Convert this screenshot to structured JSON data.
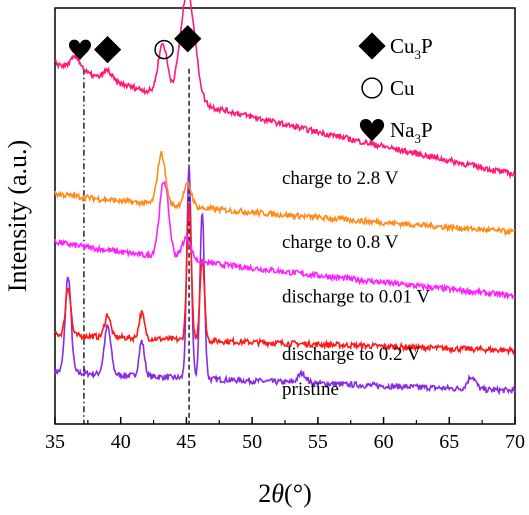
{
  "chart_data": {
    "type": "line",
    "xlabel": "2θ(°)",
    "xlabel_parts": {
      "prefix": "2",
      "var": "θ",
      "suffix": "(°)"
    },
    "ylabel": "Intensity (a.u.)",
    "xlim": [
      35,
      70
    ],
    "xticks": [
      "35",
      "40",
      "45",
      "50",
      "55",
      "60",
      "65",
      "70"
    ],
    "y_ticks_shown": false,
    "grid": false,
    "legend_position": "top-right",
    "legend": [
      {
        "symbol": "filled-diamond",
        "label": "Cu3P",
        "base": "Cu",
        "sub": "3",
        "tail": "P"
      },
      {
        "symbol": "open-circle",
        "label": "Cu",
        "base": "Cu",
        "sub": "",
        "tail": ""
      },
      {
        "symbol": "filled-heart",
        "label": "Na3P",
        "base": "Na",
        "sub": "3",
        "tail": "P"
      }
    ],
    "reference_lines": [
      {
        "x": 37.2,
        "style": "dash-dot"
      },
      {
        "x": 45.2,
        "style": "dashed"
      }
    ],
    "peak_markers": [
      {
        "x": 36.9,
        "symbol": "filled-heart"
      },
      {
        "x": 39.0,
        "symbol": "filled-diamond"
      },
      {
        "x": 43.3,
        "symbol": "open-circle"
      },
      {
        "x": 45.1,
        "symbol": "filled-diamond"
      }
    ],
    "series": [
      {
        "label": "pristine",
        "color": "#8a2be2",
        "baseline_start": 0.82,
        "baseline_end": 0.52,
        "peaks": [
          [
            36.0,
            1.5,
            0.22
          ],
          [
            39.0,
            0.75,
            0.25
          ],
          [
            41.6,
            0.55,
            0.2
          ],
          [
            45.2,
            3.3,
            0.17
          ],
          [
            46.2,
            2.6,
            0.17
          ],
          [
            53.8,
            0.15,
            0.3
          ],
          [
            66.7,
            0.2,
            0.3
          ]
        ]
      },
      {
        "label": "discharge to 0.2 V",
        "color": "#ff1a1a",
        "baseline_start": 1.4,
        "baseline_end": 1.15,
        "peaks": [
          [
            36.0,
            0.75,
            0.2
          ],
          [
            39.0,
            0.35,
            0.22
          ],
          [
            41.6,
            0.4,
            0.2
          ],
          [
            45.2,
            2.1,
            0.17
          ],
          [
            46.2,
            1.3,
            0.17
          ]
        ]
      },
      {
        "label": "discharge to 0.01 V",
        "color": "#ff22ff",
        "baseline_start": 2.85,
        "baseline_end": 2.0,
        "peaks": [
          [
            43.3,
            1.2,
            0.35
          ],
          [
            45.0,
            0.35,
            0.35
          ]
        ]
      },
      {
        "label": "charge to 0.8 V",
        "color": "#ff8c1a",
        "baseline_start": 3.6,
        "baseline_end": 3.0,
        "peaks": [
          [
            43.1,
            0.8,
            0.3
          ],
          [
            45.1,
            0.35,
            0.3
          ]
        ]
      },
      {
        "label": "charge to 2.8 V",
        "color": "#ff1a75",
        "baseline_start": 5.65,
        "baseline_end": 3.9,
        "peaks": [
          [
            36.6,
            0.2,
            0.4
          ],
          [
            39.0,
            0.15,
            0.3
          ],
          [
            43.2,
            0.8,
            0.35
          ],
          [
            45.1,
            1.7,
            0.55
          ]
        ]
      }
    ]
  }
}
